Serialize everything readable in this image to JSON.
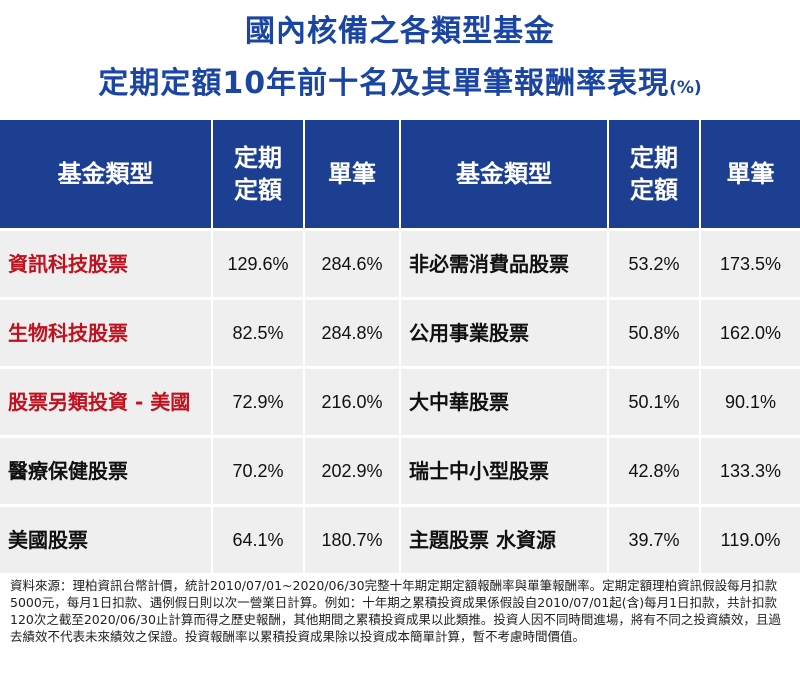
{
  "title": {
    "line1": "國內核備之各類型基金",
    "line2": "定期定額10年前十名及其單筆報酬率表現",
    "unit": "(%)"
  },
  "table": {
    "headers": {
      "fund_type": "基金類型",
      "dca_line1": "定期",
      "dca_line2": "定額",
      "lump": "單筆"
    },
    "rows": [
      {
        "left_name": "資訊科技股票",
        "left_dca": "129.6%",
        "left_lump": "284.6%",
        "right_name": "非必需消費品股票",
        "right_dca": "53.2%",
        "right_lump": "173.5%"
      },
      {
        "left_name": "生物科技股票",
        "left_dca": "82.5%",
        "left_lump": "284.8%",
        "right_name": "公用事業股票",
        "right_dca": "50.8%",
        "right_lump": "162.0%"
      },
      {
        "left_name": "股票另類投資 - 美國",
        "left_dca": "72.9%",
        "left_lump": "216.0%",
        "right_name": "大中華股票",
        "right_dca": "50.1%",
        "right_lump": "90.1%"
      },
      {
        "left_name": "醫療保健股票",
        "left_dca": "70.2%",
        "left_lump": "202.9%",
        "right_name": "瑞士中小型股票",
        "right_dca": "42.8%",
        "right_lump": "133.3%"
      },
      {
        "left_name": "美國股票",
        "left_dca": "64.1%",
        "left_lump": "180.7%",
        "right_name": "主題股票 水資源",
        "right_dca": "39.7%",
        "right_lump": "119.0%"
      }
    ]
  },
  "colors": {
    "title": "#1b45a3",
    "header_bg": "#1c3f92",
    "highlight_red": "#c0111e",
    "cell_bg": "#efefef"
  },
  "footnote": "資料來源：理柏資訊台幣計價，統計2010/07/01~2020/06/30完整十年期定期定額報酬率與單筆報酬率。定期定額理柏資訊假設每月扣款5000元，每月1日扣款、遇例假日則以次一營業日計算。例如：十年期之累積投資成果係假設自2010/07/01起(含)每月1日扣款，共計扣款120次之截至2020/06/30止計算而得之歷史報酬，其他期間之累積投資成果以此類推。投資人因不同時間進場，將有不同之投資績效，且過去績效不代表未來績效之保證。投資報酬率以累積投資成果除以投資成本簡單計算，暫不考慮時間價值。"
}
